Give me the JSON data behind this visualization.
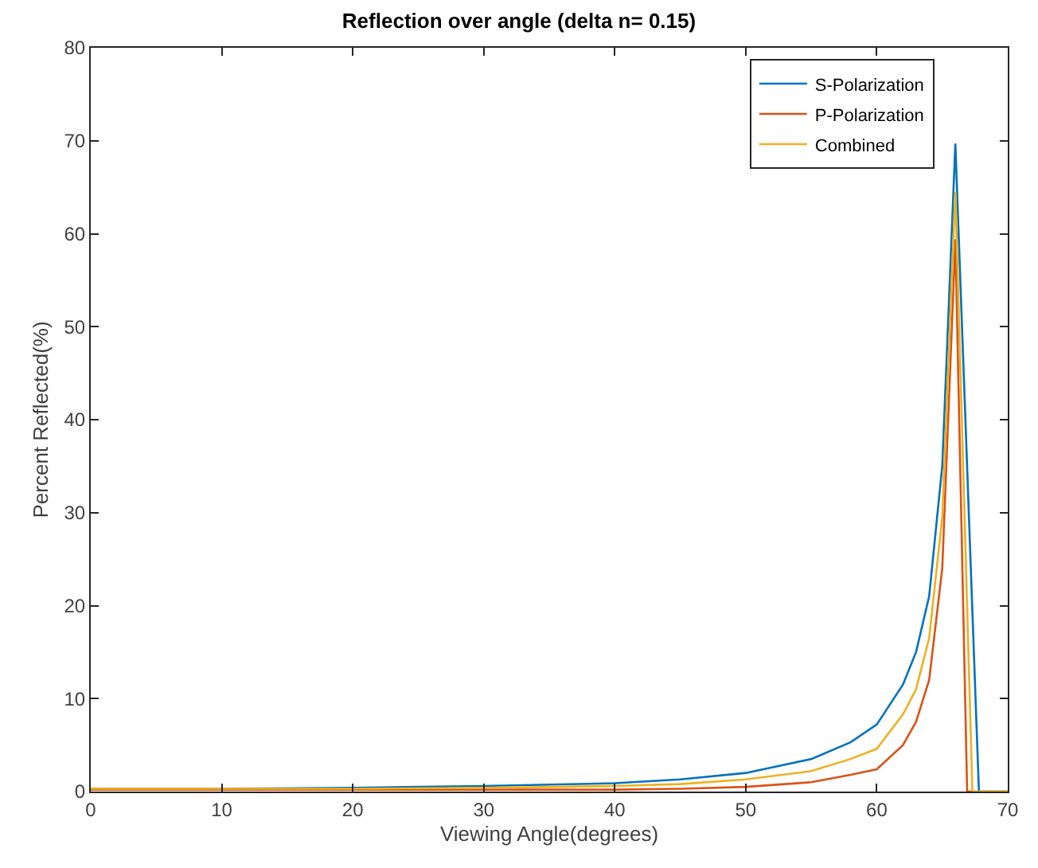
{
  "chart_data": {
    "type": "line",
    "title": "Reflection over angle (delta n= 0.15)",
    "xlabel": "Viewing Angle(degrees)",
    "ylabel": "Percent Reflected(%)",
    "xlim": [
      0,
      70
    ],
    "ylim": [
      0,
      80
    ],
    "xticks": [
      0,
      10,
      20,
      30,
      40,
      50,
      60,
      70
    ],
    "yticks": [
      0,
      10,
      20,
      30,
      40,
      50,
      60,
      70,
      80
    ],
    "legend": "top right",
    "marker": "none",
    "line_style": "solid",
    "series": [
      {
        "name": "S-Polarization",
        "color": "#0072bd",
        "x": [
          0,
          10,
          20,
          30,
          40,
          45,
          50,
          55,
          58,
          60,
          62,
          63,
          64,
          65,
          66,
          67.8,
          70
        ],
        "values": [
          0.3,
          0.3,
          0.4,
          0.6,
          0.9,
          1.3,
          2.0,
          3.5,
          5.3,
          7.2,
          11.5,
          15,
          21,
          35,
          69.7,
          0,
          0
        ]
      },
      {
        "name": "P-Polarization",
        "color": "#d95319",
        "x": [
          0,
          10,
          20,
          30,
          40,
          45,
          50,
          55,
          58,
          60,
          62,
          63,
          64,
          65,
          66,
          66.9,
          70
        ],
        "values": [
          0.2,
          0.2,
          0.2,
          0.2,
          0.2,
          0.3,
          0.5,
          1.0,
          1.8,
          2.4,
          5,
          7.5,
          12,
          24,
          59.4,
          0,
          0
        ]
      },
      {
        "name": "Combined",
        "color": "#edb120",
        "x": [
          0,
          10,
          20,
          30,
          40,
          45,
          50,
          55,
          58,
          60,
          62,
          63,
          64,
          65,
          66,
          67.3,
          70
        ],
        "values": [
          0.3,
          0.3,
          0.3,
          0.4,
          0.6,
          0.8,
          1.3,
          2.2,
          3.5,
          4.6,
          8.3,
          11,
          16.5,
          29.5,
          64.5,
          0,
          0
        ]
      }
    ]
  }
}
